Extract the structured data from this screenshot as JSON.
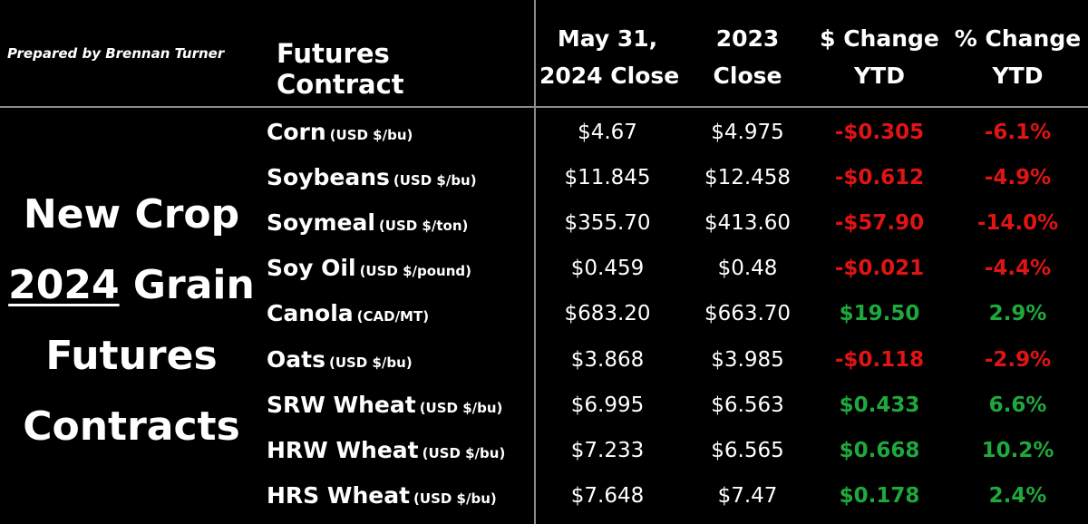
{
  "header": {
    "prepared_by": "Prepared by Brennan Turner",
    "contract_label": "Futures Contract",
    "columns": [
      {
        "line1": "May 31,",
        "line2": "2024 Close"
      },
      {
        "line1": "2023",
        "line2": "Close"
      },
      {
        "line1": "$ Change",
        "line2": "YTD"
      },
      {
        "line1": "% Change",
        "line2": "YTD"
      }
    ]
  },
  "title": {
    "line1": "New Crop",
    "line2_year": "2024",
    "line2_rest": " Grain",
    "line3": "Futures",
    "line4": "Contracts"
  },
  "colors": {
    "negative": "#e01414",
    "positive": "#1fa83c"
  },
  "rows": [
    {
      "name": "Corn",
      "unit": "(USD $/bu)",
      "close_2024": "$4.67",
      "close_2023": "$4.975",
      "change": "-$0.305",
      "pct": "-6.1%",
      "sign": "neg"
    },
    {
      "name": "Soybeans",
      "unit": "(USD $/bu)",
      "close_2024": "$11.845",
      "close_2023": "$12.458",
      "change": "-$0.612",
      "pct": "-4.9%",
      "sign": "neg"
    },
    {
      "name": "Soymeal",
      "unit": "(USD $/ton)",
      "close_2024": "$355.70",
      "close_2023": "$413.60",
      "change": "-$57.90",
      "pct": "-14.0%",
      "sign": "neg"
    },
    {
      "name": "Soy Oil",
      "unit": "(USD $/pound)",
      "close_2024": "$0.459",
      "close_2023": "$0.48",
      "change": "-$0.021",
      "pct": "-4.4%",
      "sign": "neg"
    },
    {
      "name": "Canola",
      "unit": "(CAD/MT)",
      "close_2024": "$683.20",
      "close_2023": "$663.70",
      "change": "$19.50",
      "pct": "2.9%",
      "sign": "pos"
    },
    {
      "name": "Oats",
      "unit": "(USD $/bu)",
      "close_2024": "$3.868",
      "close_2023": "$3.985",
      "change": "-$0.118",
      "pct": "-2.9%",
      "sign": "neg"
    },
    {
      "name": "SRW Wheat",
      "unit": "(USD $/bu)",
      "close_2024": "$6.995",
      "close_2023": "$6.563",
      "change": "$0.433",
      "pct": "6.6%",
      "sign": "pos"
    },
    {
      "name": "HRW Wheat",
      "unit": "(USD $/bu)",
      "close_2024": "$7.233",
      "close_2023": "$6.565",
      "change": "$0.668",
      "pct": "10.2%",
      "sign": "pos"
    },
    {
      "name": "HRS Wheat",
      "unit": "(USD $/bu)",
      "close_2024": "$7.648",
      "close_2023": "$7.47",
      "change": "$0.178",
      "pct": "2.4%",
      "sign": "pos"
    }
  ]
}
